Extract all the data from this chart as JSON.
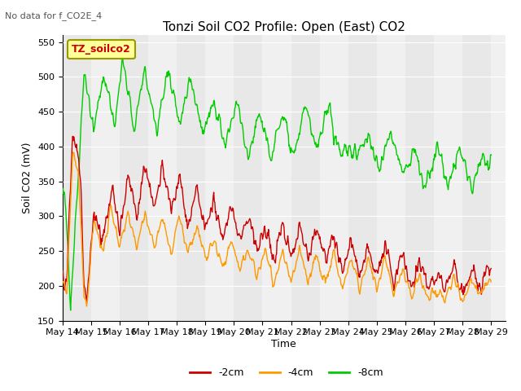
{
  "title": "Tonzi Soil CO2 Profile: Open (East) CO2",
  "subtitle": "No data for f_CO2E_4",
  "ylabel": "Soil CO2 (mV)",
  "xlabel": "Time",
  "legend_label": "TZ_soilco2",
  "series_labels": [
    "-2cm",
    "-4cm",
    "-8cm"
  ],
  "series_colors": [
    "#cc0000",
    "#ff9900",
    "#00cc00"
  ],
  "ylim": [
    150,
    560
  ],
  "yticks": [
    150,
    200,
    250,
    300,
    350,
    400,
    450,
    500,
    550
  ],
  "bg_colors": [
    "#e8e8e8",
    "#f0f0f0"
  ],
  "xtick_labels": [
    "May 14",
    "May 15",
    "May 16",
    "May 17",
    "May 18",
    "May 19",
    "May 20",
    "May 21",
    "May 22",
    "May 23",
    "May 24",
    "May 25",
    "May 26",
    "May 27",
    "May 28",
    "May 29"
  ]
}
